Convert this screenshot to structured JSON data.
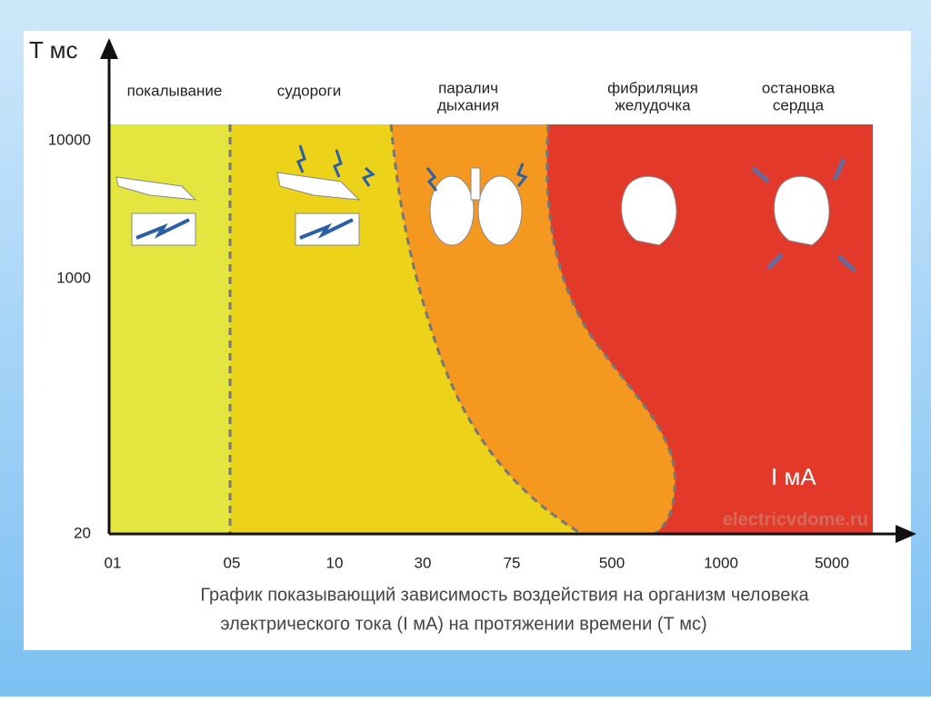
{
  "axes": {
    "y_label": "T мс",
    "x_label": "I мА",
    "y_ticks": [
      "10000",
      "1000",
      "20"
    ],
    "x_ticks": [
      "01",
      "05",
      "10",
      "30",
      "75",
      "500",
      "1000",
      "5000"
    ]
  },
  "zones": [
    {
      "label": [
        "покалывание"
      ]
    },
    {
      "label": [
        "судороги"
      ]
    },
    {
      "label": [
        "паралич",
        "дыхания"
      ]
    },
    {
      "label": [
        "фибриляция",
        "желудочка"
      ]
    },
    {
      "label": [
        "остановка",
        "сердца"
      ]
    }
  ],
  "watermark": "electricvdome.ru",
  "caption": [
    "График показывающий зависимость воздействия на организм человека",
    "электрического тока (I мА) на протяжении времени (Т мс)"
  ]
}
